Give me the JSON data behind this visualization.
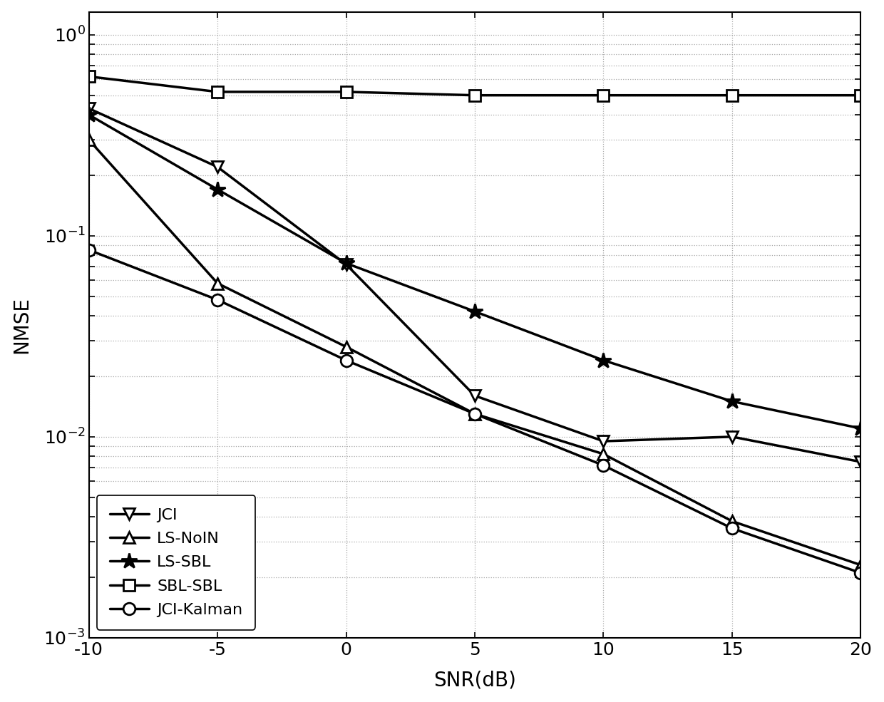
{
  "snr": [
    -10,
    -5,
    0,
    5,
    10,
    15,
    20
  ],
  "JCI": [
    0.43,
    0.22,
    0.072,
    0.016,
    0.0095,
    0.01,
    0.0075
  ],
  "LS_NoIN": [
    0.3,
    0.058,
    0.028,
    0.013,
    0.0082,
    0.0038,
    0.0023
  ],
  "LS_SBL": [
    0.4,
    0.17,
    0.073,
    0.042,
    0.024,
    0.015,
    0.011
  ],
  "SBL_SBL": [
    0.62,
    0.52,
    0.52,
    0.5,
    0.5,
    0.5,
    0.5
  ],
  "JCI_Kalman": [
    0.085,
    0.048,
    0.024,
    0.013,
    0.0072,
    0.0035,
    0.0021
  ],
  "xlabel": "SNR(dB)",
  "ylabel": "NMSE",
  "xlim": [
    -10,
    20
  ],
  "ylim_min": 0.001,
  "ylim_max": 1.3,
  "color": "#000000",
  "linewidth": 2.5,
  "markersize": 12,
  "star_markersize": 16,
  "grid_color": "#aaaaaa",
  "background_color": "#ffffff",
  "tick_fontsize": 18,
  "label_fontsize": 20,
  "legend_fontsize": 16
}
